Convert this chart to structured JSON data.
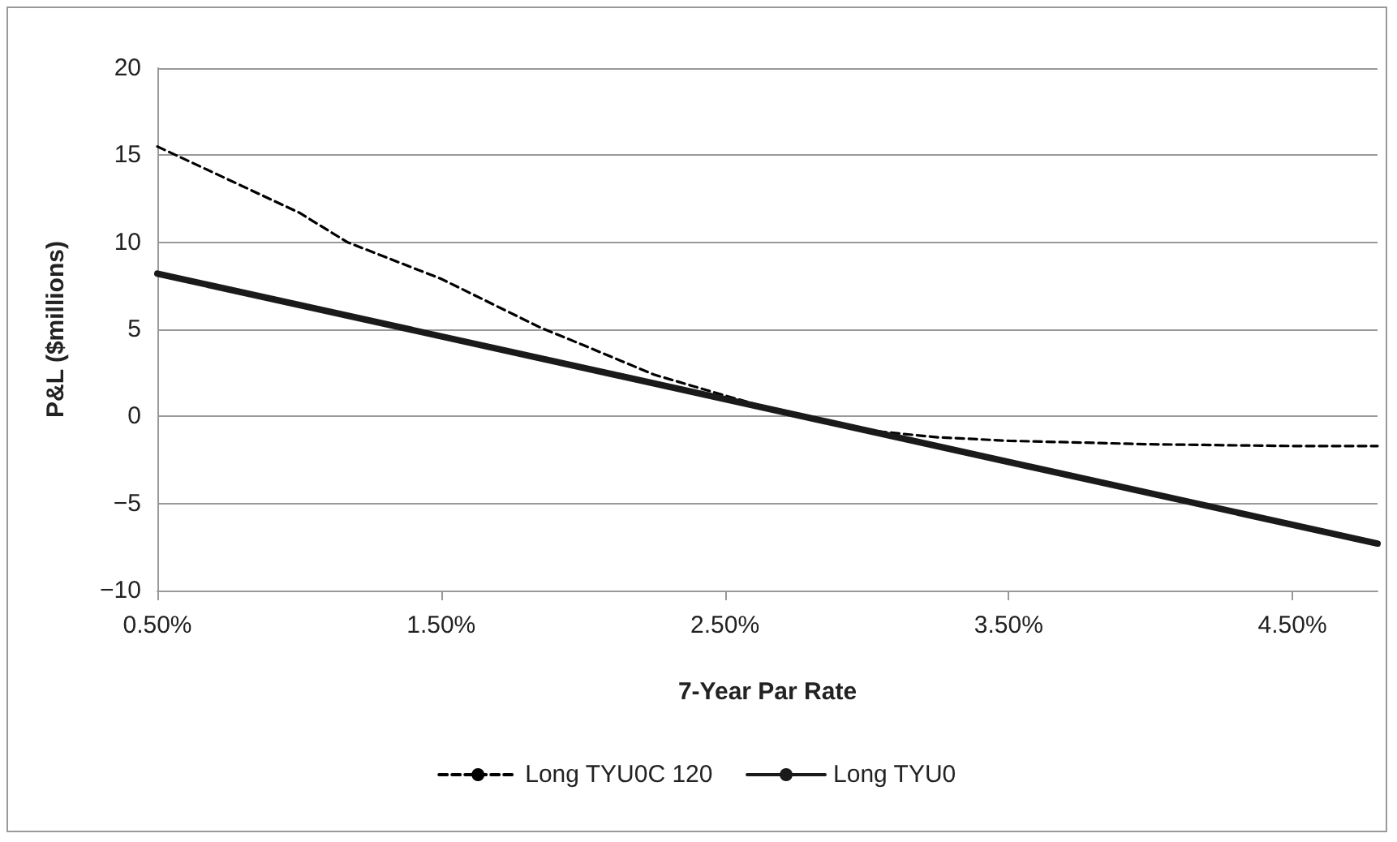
{
  "chart_data": {
    "type": "line",
    "xlabel": "7-Year Par Rate",
    "ylabel": "P&L ($millions)",
    "xlim": [
      0.5,
      4.8
    ],
    "xticks": [
      {
        "value": 0.5,
        "label": "0.50%"
      },
      {
        "value": 1.5,
        "label": "1.50%"
      },
      {
        "value": 2.5,
        "label": "2.50%"
      },
      {
        "value": 3.5,
        "label": "3.50%"
      },
      {
        "value": 4.5,
        "label": "4.50%"
      }
    ],
    "ylim": [
      -10,
      20
    ],
    "yticks": [
      {
        "value": -10,
        "label": "−10"
      },
      {
        "value": -5,
        "label": "−5"
      },
      0,
      5,
      10,
      15,
      20
    ],
    "grid": "y",
    "legend": "bottom",
    "marker": "none",
    "series": [
      {
        "name": "Long TYU0C 120",
        "color": "#000000",
        "line_style": "dashed",
        "x": [
          0.5,
          1.0,
          1.17,
          1.5,
          1.85,
          2.0,
          2.25,
          2.5,
          2.76,
          3.0,
          3.25,
          3.5,
          4.0,
          4.5,
          4.8
        ],
        "values": [
          15.5,
          11.7,
          10,
          7.9,
          5.1,
          4.1,
          2.4,
          1.2,
          0,
          -0.8,
          -1.2,
          -1.4,
          -1.6,
          -1.7,
          -1.7
        ]
      },
      {
        "name": "Long TYU0",
        "color": "#1a1a1a",
        "line_style": "solid",
        "x": [
          0.5,
          4.8
        ],
        "values": [
          8.2,
          -7.3
        ]
      }
    ]
  }
}
